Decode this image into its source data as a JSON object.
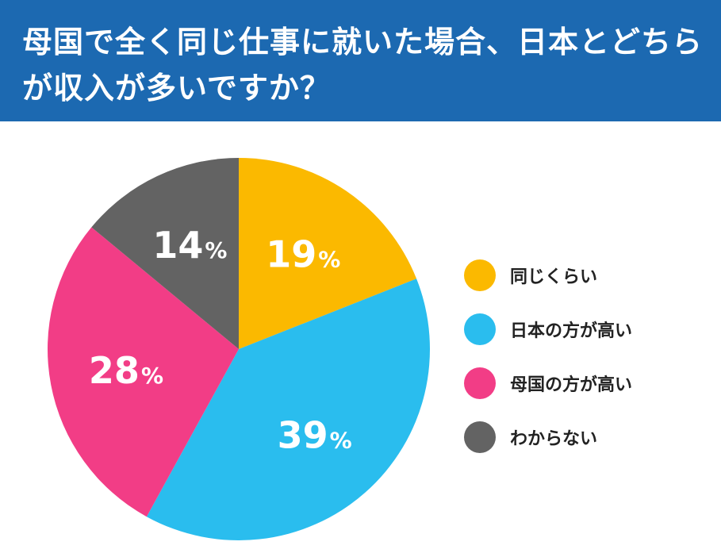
{
  "header": {
    "title": "母国で全く同じ仕事に就いた場合、日本とどちらが収入が多いですか？"
  },
  "chart_data": {
    "type": "pie",
    "title": "母国で全く同じ仕事に就いた場合、日本とどちらが収入が多いですか？",
    "unit": "%",
    "start_angle_deg": 0,
    "direction": "clockwise",
    "slices": [
      {
        "label": "同じくらい",
        "value": 19,
        "color": "#fbb900"
      },
      {
        "label": "日本の方が高い",
        "value": 39,
        "color": "#2abdee"
      },
      {
        "label": "母国の方が高い",
        "value": 28,
        "color": "#f23d86"
      },
      {
        "label": "わからない",
        "value": 14,
        "color": "#636363"
      }
    ],
    "legend_position": "right"
  }
}
